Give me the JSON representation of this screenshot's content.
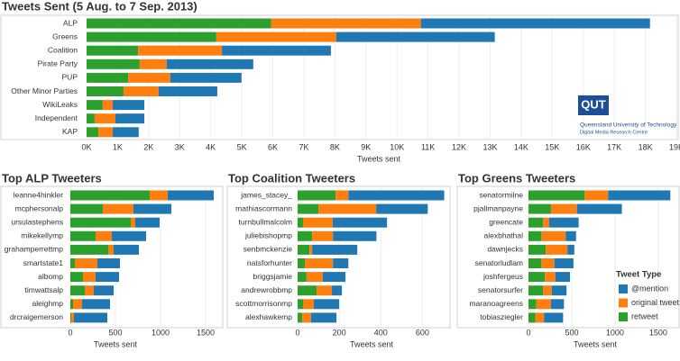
{
  "logo": {
    "mark": "QUT",
    "name": "Queensland University of Technology",
    "unit": "Digital Media Research Centre"
  },
  "chart_data": [
    {
      "type": "hbar-stacked",
      "title": "Tweets Sent (5 Aug. to 7 Sep. 2013)",
      "x_label": "Tweets sent",
      "grid": true,
      "categories": [
        "ALP",
        "Greens",
        "Coalition",
        "Pirate Party",
        "PUP",
        "Other Minor Parties",
        "WikiLeaks",
        "Independent",
        "KAP"
      ],
      "series": [
        {
          "color": "#2ca02c",
          "values": [
            5950,
            4180,
            1660,
            1710,
            1340,
            1190,
            520,
            260,
            380
          ]
        },
        {
          "color": "#ff7f0e",
          "values": [
            4820,
            3860,
            2700,
            870,
            1360,
            1130,
            320,
            670,
            460
          ]
        },
        {
          "color": "#1f77b4",
          "values": [
            7380,
            5110,
            3510,
            2790,
            2290,
            1890,
            1020,
            930,
            840
          ]
        }
      ],
      "xlim": [
        0,
        19000
      ],
      "xticks": [
        {
          "value": 0,
          "label": "0K"
        },
        {
          "value": 1000,
          "label": "1K"
        },
        {
          "value": 2000,
          "label": "2K"
        },
        {
          "value": 3000,
          "label": "3K"
        },
        {
          "value": 4000,
          "label": "4K"
        },
        {
          "value": 5000,
          "label": "5K"
        },
        {
          "value": 6000,
          "label": "6K"
        },
        {
          "value": 7000,
          "label": "7K"
        },
        {
          "value": 8000,
          "label": "8K"
        },
        {
          "value": 9000,
          "label": "9K"
        },
        {
          "value": 10000,
          "label": "10K"
        },
        {
          "value": 11000,
          "label": "11K"
        },
        {
          "value": 12000,
          "label": "12K"
        },
        {
          "value": 13000,
          "label": "13K"
        },
        {
          "value": 14000,
          "label": "14K"
        },
        {
          "value": 15000,
          "label": "15K"
        },
        {
          "value": 16000,
          "label": "16K"
        },
        {
          "value": 17000,
          "label": "17K"
        },
        {
          "value": 18000,
          "label": "18K"
        },
        {
          "value": 19000,
          "label": "19K"
        }
      ]
    },
    {
      "type": "hbar-stacked",
      "title": "Top ALP Tweeters",
      "x_label": "Tweets sent",
      "grid": true,
      "categories": [
        "leanne4hinkler",
        "mcphersonalp",
        "ursulastephens",
        "mikekellymp",
        "grahamperrettmp",
        "smartstate1",
        "albomp",
        "timwattsalp",
        "aleighmp",
        "drcraigemerson"
      ],
      "series": [
        {
          "color": "#2ca02c",
          "values": [
            880,
            360,
            670,
            280,
            420,
            50,
            140,
            160,
            30,
            10
          ]
        },
        {
          "color": "#ff7f0e",
          "values": [
            200,
            340,
            50,
            180,
            60,
            250,
            140,
            100,
            100,
            30
          ]
        },
        {
          "color": "#1f77b4",
          "values": [
            510,
            420,
            270,
            380,
            280,
            250,
            260,
            220,
            310,
            370
          ]
        }
      ],
      "xlim": [
        0,
        1620
      ],
      "xticks": [
        0,
        500,
        1000,
        1500
      ]
    },
    {
      "type": "hbar-stacked",
      "title": "Top Coalition Tweeters",
      "x_label": "Tweets sent",
      "grid": true,
      "categories": [
        "james_stacey_",
        "mathiascormann",
        "turnbullmalcolm",
        "juliebishopmp",
        "senbmckenzie",
        "natsforhunter",
        "briggsjamie",
        "andrewrobbmp",
        "scottmorrisonmp",
        "alexhawkemp"
      ],
      "series": [
        {
          "color": "#2ca02c",
          "values": [
            183,
            100,
            26,
            70,
            57,
            35,
            43,
            91,
            26,
            22
          ]
        },
        {
          "color": "#ff7f0e",
          "values": [
            61,
            278,
            143,
            100,
            13,
            135,
            78,
            74,
            52,
            43
          ]
        },
        {
          "color": "#1f77b4",
          "values": [
            461,
            248,
            261,
            209,
            217,
            74,
            109,
            48,
            122,
            122
          ]
        }
      ],
      "xlim": [
        0,
        720
      ],
      "xticks": [
        0,
        200,
        400,
        600
      ]
    },
    {
      "type": "hbar-stacked",
      "title": "Top Greens Tweeters",
      "x_label": "Tweets sent",
      "grid": true,
      "legend_title": "Tweet Type",
      "categories": [
        "senatormilne",
        "pjallmanpayne",
        "greencate",
        "alexbhathal",
        "dawnjecks",
        "senatorludlam",
        "joshfergeus",
        "senatorsurfer",
        "maranoagreens",
        "tobiasziegler"
      ],
      "series": [
        {
          "name": "retweet",
          "color": "#2ca02c",
          "values": [
            650,
            260,
            170,
            150,
            200,
            150,
            190,
            170,
            90,
            80
          ]
        },
        {
          "name": "original tweet",
          "color": "#ff7f0e",
          "values": [
            270,
            300,
            70,
            280,
            250,
            150,
            120,
            100,
            170,
            100
          ]
        },
        {
          "name": "@mention",
          "color": "#1f77b4",
          "values": [
            720,
            520,
            340,
            120,
            80,
            220,
            170,
            170,
            150,
            220
          ]
        }
      ],
      "xlim": [
        0,
        1710
      ],
      "xticks": [
        0,
        500,
        1000,
        1500
      ]
    }
  ]
}
